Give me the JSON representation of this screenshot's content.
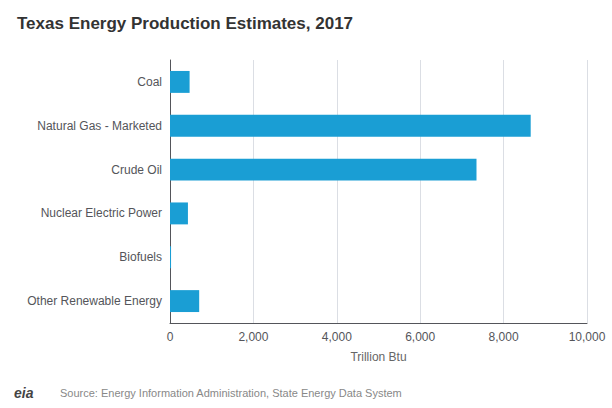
{
  "chart_data": {
    "type": "bar",
    "orientation": "horizontal",
    "title": "Texas Energy Production Estimates, 2017",
    "categories": [
      "Other Renewable Energy",
      "Biofuels",
      "Nuclear Electric Power",
      "Crude Oil",
      "Natural Gas - Marketed",
      "Coal"
    ],
    "values": [
      700,
      25,
      430,
      7350,
      8650,
      470
    ],
    "color": "#1a9ed4",
    "xlabel": "Trillion Btu",
    "xlim": [
      0,
      10000
    ],
    "xticks": [
      0,
      {
        "value": 2000,
        "label": "2,000"
      },
      {
        "value": 4000,
        "label": "4,000"
      },
      {
        "value": 6000,
        "label": "6,000"
      },
      {
        "value": 8000,
        "label": "8,000"
      },
      {
        "value": 10000,
        "label": "10,000"
      }
    ],
    "grid": true,
    "annotations": [
      "Source: Energy Information Administration, State Energy Data System",
      "eia"
    ]
  }
}
